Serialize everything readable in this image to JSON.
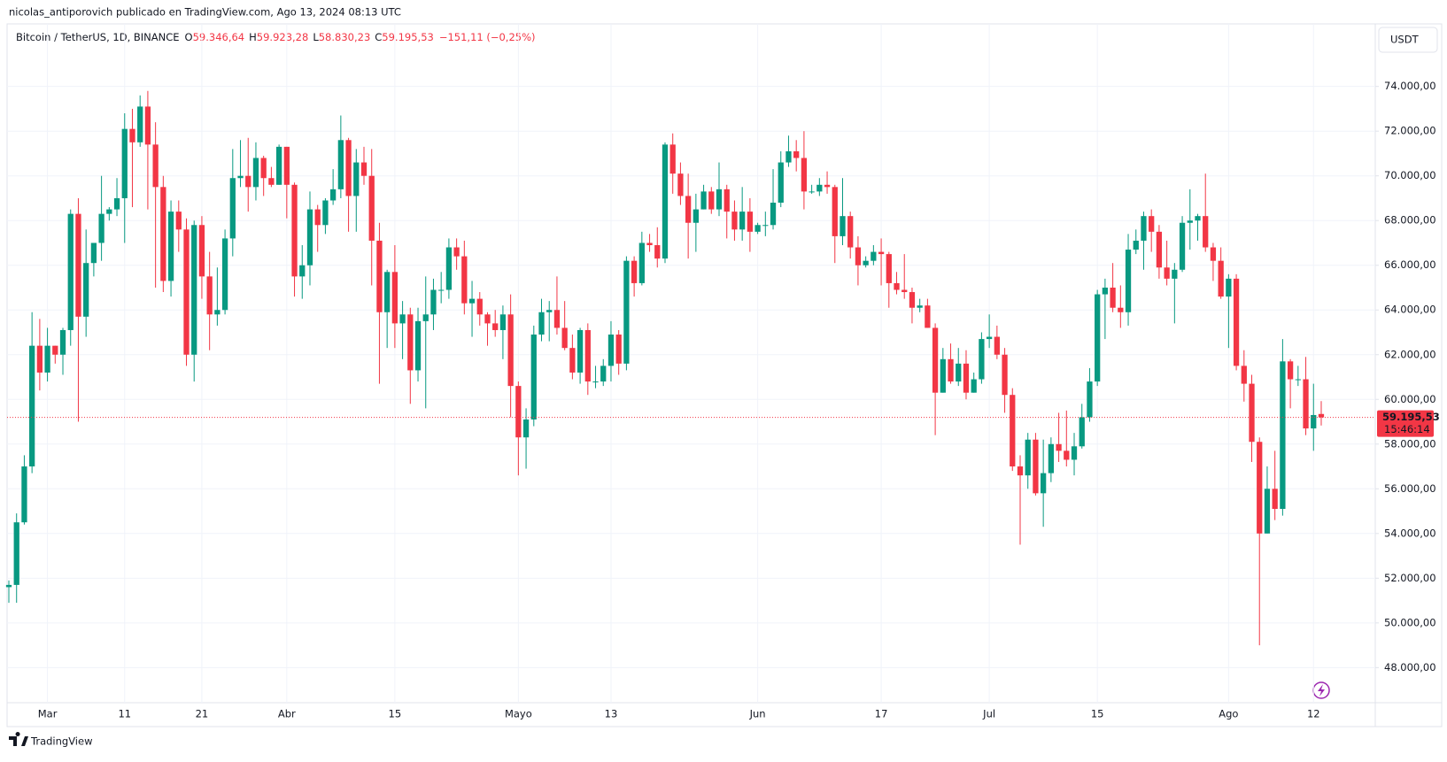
{
  "header": {
    "text": "nicolas_antiporovich publicado en TradingView.com, Ago 13, 2024 08:13 UTC"
  },
  "footer": {
    "brand": "TradingView"
  },
  "chart_data": {
    "type": "candlestick",
    "currency": "USDT",
    "legend": {
      "items": [
        {
          "label": "O",
          "value": "59.346,64"
        },
        {
          "label": "H",
          "value": "59.923,28"
        },
        {
          "label": "L",
          "value": "58.830,23"
        },
        {
          "label": "C",
          "value": "59.195,53"
        }
      ],
      "change": "−151,11 (−0,25%)"
    },
    "last_price": {
      "value": 59195.53,
      "label": "59.195,53"
    },
    "countdown": "15:46:14",
    "grid": true,
    "xlim": [
      "2024-02-25",
      "2024-08-20"
    ],
    "xticks": [
      {
        "value": "2024-03-01",
        "label": "Mar"
      },
      {
        "value": "2024-03-11",
        "label": "11"
      },
      {
        "value": "2024-03-21",
        "label": "21"
      },
      {
        "value": "2024-04-01",
        "label": "Abr"
      },
      {
        "value": "2024-04-15",
        "label": "15"
      },
      {
        "value": "2024-05-01",
        "label": "Mayo"
      },
      {
        "value": "2024-05-13",
        "label": "13"
      },
      {
        "value": "2024-06-01",
        "label": "Jun"
      },
      {
        "value": "2024-06-17",
        "label": "17"
      },
      {
        "value": "2024-07-01",
        "label": "Jul"
      },
      {
        "value": "2024-07-15",
        "label": "15"
      },
      {
        "value": "2024-08-01",
        "label": "Ago"
      },
      {
        "value": "2024-08-12",
        "label": "12"
      }
    ],
    "ylim": [
      46430,
      76640
    ],
    "yticks": [
      {
        "value": 48000,
        "label": "48.000,00"
      },
      {
        "value": 50000,
        "label": "50.000,00"
      },
      {
        "value": 52000,
        "label": "52.000,00"
      },
      {
        "value": 54000,
        "label": "54.000,00"
      },
      {
        "value": 56000,
        "label": "56.000,00"
      },
      {
        "value": 58000,
        "label": "58.000,00"
      },
      {
        "value": 60000,
        "label": "60.000,00"
      },
      {
        "value": 62000,
        "label": "62.000,00"
      },
      {
        "value": 64000,
        "label": "64.000,00"
      },
      {
        "value": 66000,
        "label": "66.000,00"
      },
      {
        "value": 68000,
        "label": "68.000,00"
      },
      {
        "value": 70000,
        "label": "70.000,00"
      },
      {
        "value": 72000,
        "label": "72.000,00"
      },
      {
        "value": 74000,
        "label": "74.000,00"
      }
    ],
    "x": [
      "2024-02-25",
      "2024-02-26",
      "2024-02-27",
      "2024-02-28",
      "2024-02-29",
      "2024-03-01",
      "2024-03-02",
      "2024-03-03",
      "2024-03-04",
      "2024-03-05",
      "2024-03-06",
      "2024-03-07",
      "2024-03-08",
      "2024-03-09",
      "2024-03-10",
      "2024-03-11",
      "2024-03-12",
      "2024-03-13",
      "2024-03-14",
      "2024-03-15",
      "2024-03-16",
      "2024-03-17",
      "2024-03-18",
      "2024-03-19",
      "2024-03-20",
      "2024-03-21",
      "2024-03-22",
      "2024-03-23",
      "2024-03-24",
      "2024-03-25",
      "2024-03-26",
      "2024-03-27",
      "2024-03-28",
      "2024-03-29",
      "2024-03-30",
      "2024-03-31",
      "2024-04-01",
      "2024-04-02",
      "2024-04-03",
      "2024-04-04",
      "2024-04-05",
      "2024-04-06",
      "2024-04-07",
      "2024-04-08",
      "2024-04-09",
      "2024-04-10",
      "2024-04-11",
      "2024-04-12",
      "2024-04-13",
      "2024-04-14",
      "2024-04-15",
      "2024-04-16",
      "2024-04-17",
      "2024-04-18",
      "2024-04-19",
      "2024-04-20",
      "2024-04-21",
      "2024-04-22",
      "2024-04-23",
      "2024-04-24",
      "2024-04-25",
      "2024-04-26",
      "2024-04-27",
      "2024-04-28",
      "2024-04-29",
      "2024-04-30",
      "2024-05-01",
      "2024-05-02",
      "2024-05-03",
      "2024-05-04",
      "2024-05-05",
      "2024-05-06",
      "2024-05-07",
      "2024-05-08",
      "2024-05-09",
      "2024-05-10",
      "2024-05-11",
      "2024-05-12",
      "2024-05-13",
      "2024-05-14",
      "2024-05-15",
      "2024-05-16",
      "2024-05-17",
      "2024-05-18",
      "2024-05-19",
      "2024-05-20",
      "2024-05-21",
      "2024-05-22",
      "2024-05-23",
      "2024-05-24",
      "2024-05-25",
      "2024-05-26",
      "2024-05-27",
      "2024-05-28",
      "2024-05-29",
      "2024-05-30",
      "2024-05-31",
      "2024-06-01",
      "2024-06-02",
      "2024-06-03",
      "2024-06-04",
      "2024-06-05",
      "2024-06-06",
      "2024-06-07",
      "2024-06-08",
      "2024-06-09",
      "2024-06-10",
      "2024-06-11",
      "2024-06-12",
      "2024-06-13",
      "2024-06-14",
      "2024-06-15",
      "2024-06-16",
      "2024-06-17",
      "2024-06-18",
      "2024-06-19",
      "2024-06-20",
      "2024-06-21",
      "2024-06-22",
      "2024-06-23",
      "2024-06-24",
      "2024-06-25",
      "2024-06-26",
      "2024-06-27",
      "2024-06-28",
      "2024-06-29",
      "2024-06-30",
      "2024-07-01",
      "2024-07-02",
      "2024-07-03",
      "2024-07-04",
      "2024-07-05",
      "2024-07-06",
      "2024-07-07",
      "2024-07-08",
      "2024-07-09",
      "2024-07-10",
      "2024-07-11",
      "2024-07-12",
      "2024-07-13",
      "2024-07-14",
      "2024-07-15",
      "2024-07-16",
      "2024-07-17",
      "2024-07-18",
      "2024-07-19",
      "2024-07-20",
      "2024-07-21",
      "2024-07-22",
      "2024-07-23",
      "2024-07-24",
      "2024-07-25",
      "2024-07-26",
      "2024-07-27",
      "2024-07-28",
      "2024-07-29",
      "2024-07-30",
      "2024-07-31",
      "2024-08-01",
      "2024-08-02",
      "2024-08-03",
      "2024-08-04",
      "2024-08-05",
      "2024-08-06",
      "2024-08-07",
      "2024-08-08",
      "2024-08-09",
      "2024-08-10",
      "2024-08-11",
      "2024-08-12",
      "2024-08-13"
    ],
    "series": [
      {
        "name": "Bitcoin / TetherUS, 1D, BINANCE",
        "up_color": "#089981",
        "down_color": "#f23645",
        "open": [
          51600,
          51700,
          54500,
          57000,
          62400,
          61200,
          62400,
          62000,
          63100,
          68300,
          63700,
          66100,
          67000,
          68300,
          68500,
          69000,
          72100,
          71500,
          73100,
          71400,
          69500,
          65300,
          68400,
          67600,
          62000,
          67800,
          65500,
          63800,
          64000,
          67200,
          69900,
          70000,
          69500,
          70800,
          69900,
          69600,
          71300,
          69600,
          65500,
          66000,
          68500,
          67800,
          68900,
          69400,
          71600,
          69100,
          70600,
          70000,
          67100,
          63900,
          65700,
          63400,
          63800,
          61300,
          63500,
          63800,
          64900,
          64900,
          66800,
          66400,
          64300,
          64500,
          63800,
          63400,
          63100,
          63800,
          60600,
          58300,
          59100,
          62900,
          63900,
          64000,
          63200,
          62300,
          61200,
          63100,
          60800,
          60800,
          61500,
          62900,
          61600,
          66200,
          65200,
          67000,
          66900,
          66300,
          71400,
          70100,
          69100,
          67900,
          68500,
          69300,
          68500,
          69400,
          68400,
          67600,
          68400,
          67500,
          67800,
          67800,
          68800,
          70600,
          71100,
          70800,
          69300,
          69300,
          69600,
          69500,
          67300,
          68200,
          66800,
          66000,
          66200,
          66600,
          66500,
          65200,
          64900,
          64800,
          64100,
          64200,
          63200,
          60300,
          61800,
          60800,
          61600,
          60300,
          60900,
          62700,
          62800,
          62000,
          60200,
          57000,
          56600,
          58200,
          55800,
          56700,
          58000,
          57700,
          57300,
          57900,
          59200,
          60800,
          64700,
          65000,
          64100,
          63900,
          66700,
          67100,
          68200,
          67500,
          65900,
          65400,
          65800,
          67900,
          68000,
          68200,
          66800,
          66200,
          64600,
          65400,
          61500,
          60700,
          58100,
          54000,
          56000,
          55100,
          61700,
          60900,
          60900,
          58700,
          59346.64
        ],
        "high": [
          51900,
          54900,
          57500,
          63900,
          63600,
          63200,
          62400,
          63200,
          68500,
          69000,
          67600,
          67000,
          70000,
          68600,
          69900,
          72800,
          73000,
          73600,
          73800,
          72400,
          70000,
          68900,
          68900,
          68100,
          68000,
          68200,
          66600,
          65900,
          67600,
          71200,
          71600,
          71700,
          71500,
          70900,
          70400,
          71400,
          71300,
          69700,
          66900,
          69300,
          68700,
          69000,
          70300,
          72700,
          71700,
          71200,
          71300,
          71200,
          67900,
          65800,
          66900,
          64400,
          64100,
          64100,
          65500,
          65400,
          65700,
          67200,
          67200,
          67100,
          65300,
          64800,
          63900,
          64000,
          64200,
          64700,
          60800,
          59600,
          63300,
          64500,
          64400,
          65500,
          64400,
          62900,
          63200,
          63400,
          61500,
          61800,
          63500,
          63100,
          66400,
          66400,
          67500,
          67400,
          67700,
          71500,
          71900,
          70600,
          70100,
          69200,
          69600,
          69500,
          70600,
          69600,
          68900,
          69500,
          69000,
          67900,
          68400,
          70300,
          71100,
          71800,
          71600,
          72000,
          69600,
          69900,
          70200,
          69600,
          69900,
          68400,
          67300,
          66400,
          66900,
          67200,
          66600,
          65700,
          66500,
          65000,
          64500,
          64500,
          63400,
          62300,
          62500,
          62300,
          62200,
          61200,
          63000,
          63800,
          63300,
          62300,
          60500,
          57500,
          58500,
          58500,
          58200,
          58300,
          59400,
          59500,
          58500,
          59800,
          61400,
          64900,
          65400,
          66100,
          65100,
          67400,
          67600,
          68400,
          68500,
          67800,
          67100,
          66100,
          68200,
          69400,
          68300,
          70100,
          67000,
          66800,
          65600,
          65600,
          62200,
          61100,
          58300,
          57000,
          57700,
          62700,
          61800,
          61500,
          61900,
          60700,
          59923.28
        ],
        "low": [
          50900,
          50900,
          54400,
          56700,
          60400,
          60800,
          61600,
          61100,
          62400,
          59000,
          62800,
          65500,
          66200,
          68000,
          68200,
          67000,
          68600,
          71300,
          68500,
          65000,
          64800,
          64600,
          66600,
          61500,
          60800,
          64500,
          62200,
          63300,
          63800,
          66400,
          69500,
          68400,
          68900,
          69100,
          69500,
          69600,
          68100,
          64600,
          64500,
          65100,
          66600,
          67400,
          68700,
          69000,
          67500,
          67500,
          69600,
          65100,
          60700,
          62300,
          62300,
          61800,
          59800,
          60800,
          59600,
          63100,
          64300,
          64500,
          65800,
          63800,
          62800,
          63300,
          62400,
          62800,
          61800,
          59200,
          56600,
          56900,
          58800,
          62600,
          62600,
          62900,
          62200,
          60900,
          60700,
          60200,
          60500,
          60600,
          60800,
          61100,
          61300,
          64600,
          65100,
          66600,
          65900,
          66100,
          69200,
          68700,
          66300,
          66600,
          68500,
          68300,
          68200,
          67200,
          67100,
          67100,
          66600,
          67400,
          67300,
          67600,
          68600,
          70400,
          70200,
          68500,
          69200,
          69100,
          69200,
          66100,
          66900,
          66300,
          65100,
          65900,
          66000,
          65100,
          64100,
          64700,
          64500,
          63400,
          63900,
          63200,
          58400,
          60300,
          60700,
          60600,
          60000,
          60300,
          60700,
          62300,
          61800,
          59400,
          56800,
          53500,
          56000,
          55700,
          54300,
          56300,
          57200,
          57000,
          56600,
          57800,
          59000,
          60600,
          62700,
          63900,
          63200,
          63300,
          66500,
          65800,
          66600,
          65400,
          65100,
          63400,
          65700,
          66700,
          67100,
          66600,
          65300,
          64500,
          62300,
          61300,
          59900,
          57200,
          49000,
          54000,
          54600,
          54800,
          59600,
          60600,
          58400,
          57700,
          58830.23
        ],
        "close": [
          51700,
          54500,
          57000,
          62400,
          61200,
          62400,
          62000,
          63100,
          68300,
          63700,
          66100,
          67000,
          68300,
          68500,
          69000,
          72100,
          71500,
          73100,
          71400,
          69500,
          65300,
          68400,
          67600,
          62000,
          67800,
          65500,
          63800,
          64000,
          67200,
          69900,
          70000,
          69500,
          70800,
          69900,
          69600,
          71300,
          69600,
          65500,
          66000,
          68500,
          67800,
          68900,
          69400,
          71600,
          69100,
          70600,
          70000,
          67100,
          63900,
          65700,
          63400,
          63800,
          61300,
          63500,
          63800,
          64900,
          64900,
          66800,
          66400,
          64300,
          64500,
          63800,
          63400,
          63100,
          63800,
          60600,
          58300,
          59100,
          62900,
          63900,
          64000,
          63200,
          62300,
          61200,
          63100,
          60800,
          60800,
          61500,
          62900,
          61600,
          66200,
          65200,
          67000,
          66900,
          66300,
          71400,
          70100,
          69100,
          67900,
          68500,
          69300,
          68500,
          69400,
          68400,
          67600,
          68400,
          67500,
          67800,
          67800,
          68800,
          70600,
          71100,
          70800,
          69300,
          69300,
          69600,
          69500,
          67300,
          68200,
          66800,
          66000,
          66200,
          66600,
          66500,
          65200,
          64900,
          64800,
          64100,
          64200,
          63200,
          60300,
          61800,
          60800,
          61600,
          60300,
          60900,
          62700,
          62800,
          62000,
          60200,
          57000,
          56600,
          58200,
          55800,
          56700,
          58000,
          57700,
          57300,
          57900,
          59200,
          60800,
          64700,
          65000,
          64100,
          63900,
          66700,
          67100,
          68200,
          67500,
          65900,
          65400,
          65800,
          67900,
          68000,
          68200,
          66800,
          66200,
          64600,
          65400,
          61500,
          60700,
          58100,
          54000,
          56000,
          55100,
          61700,
          60900,
          60900,
          58700,
          59300,
          59195.53
        ]
      }
    ]
  }
}
